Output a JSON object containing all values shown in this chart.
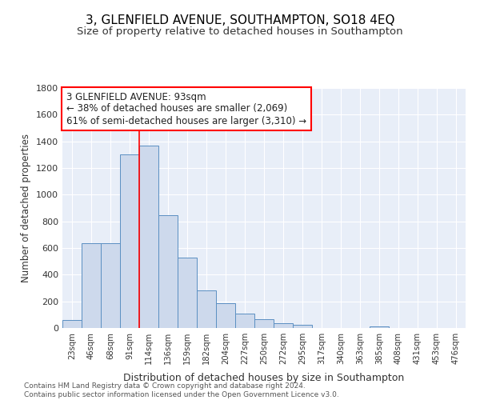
{
  "title1": "3, GLENFIELD AVENUE, SOUTHAMPTON, SO18 4EQ",
  "title2": "Size of property relative to detached houses in Southampton",
  "xlabel": "Distribution of detached houses by size in Southampton",
  "ylabel": "Number of detached properties",
  "categories": [
    "23sqm",
    "46sqm",
    "68sqm",
    "91sqm",
    "114sqm",
    "136sqm",
    "159sqm",
    "182sqm",
    "204sqm",
    "227sqm",
    "250sqm",
    "272sqm",
    "295sqm",
    "317sqm",
    "340sqm",
    "363sqm",
    "385sqm",
    "408sqm",
    "431sqm",
    "453sqm",
    "476sqm"
  ],
  "values": [
    60,
    635,
    635,
    1305,
    1370,
    845,
    530,
    285,
    185,
    110,
    65,
    35,
    25,
    0,
    0,
    0,
    15,
    0,
    0,
    0,
    0
  ],
  "bar_color": "#cdd9ec",
  "bar_edge_color": "#5b8fc2",
  "red_line_x": 3.5,
  "annotation_text": "3 GLENFIELD AVENUE: 93sqm\n← 38% of detached houses are smaller (2,069)\n61% of semi-detached houses are larger (3,310) →",
  "annotation_box_color": "white",
  "annotation_box_edge": "red",
  "ylim": [
    0,
    1800
  ],
  "yticks": [
    0,
    200,
    400,
    600,
    800,
    1000,
    1200,
    1400,
    1600,
    1800
  ],
  "footer": "Contains HM Land Registry data © Crown copyright and database right 2024.\nContains public sector information licensed under the Open Government Licence v3.0.",
  "bg_color": "#e8eef8",
  "grid_color": "#ffffff",
  "title1_fontsize": 11,
  "title2_fontsize": 9.5,
  "annot_fontsize": 8.5
}
